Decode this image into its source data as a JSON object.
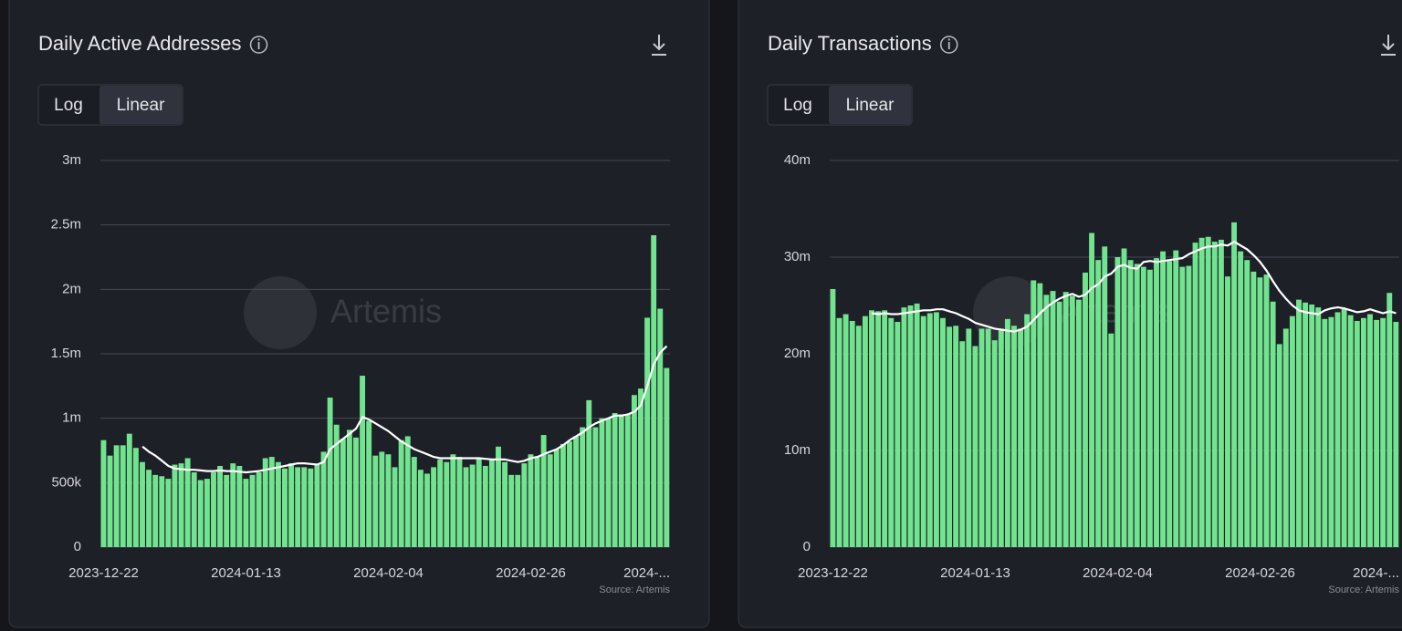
{
  "chart_data": [
    {
      "type": "bar",
      "title": "Daily Active Addresses",
      "scale_buttons": [
        "Log",
        "Linear"
      ],
      "log_scale": false,
      "watermark": "Artemis",
      "source": "Source: Artemis",
      "grid": true,
      "categories": [
        "2023-12-22",
        null,
        null,
        null,
        null,
        null,
        null,
        null,
        null,
        null,
        null,
        null,
        null,
        null,
        null,
        null,
        null,
        null,
        null,
        null,
        null,
        null,
        "2024-01-13",
        null,
        null,
        null,
        null,
        null,
        null,
        null,
        null,
        null,
        null,
        null,
        null,
        null,
        null,
        null,
        null,
        null,
        null,
        null,
        null,
        null,
        "2024-02-04",
        null,
        null,
        null,
        null,
        null,
        null,
        null,
        null,
        null,
        null,
        null,
        null,
        null,
        null,
        null,
        null,
        null,
        null,
        null,
        null,
        null,
        "2024-02-26",
        null,
        null,
        null,
        null,
        null,
        null,
        null,
        null,
        null,
        null,
        null,
        null,
        null,
        null,
        null,
        null,
        null,
        null,
        null,
        null,
        "2024-..."
      ],
      "ylim": [
        0,
        3000000
      ],
      "yticks": [
        0,
        {
          "value": 500000,
          "label": "500k"
        },
        {
          "value": 1000000,
          "label": "1m"
        },
        {
          "value": 1500000,
          "label": "1.5m"
        },
        {
          "value": 2000000,
          "label": "2m"
        },
        {
          "value": 2500000,
          "label": "2.5m"
        },
        {
          "value": 3000000,
          "label": "3m"
        }
      ],
      "series": [
        {
          "type": "bar",
          "color": "#72e38e",
          "values": [
            830000,
            710000,
            790000,
            790000,
            880000,
            770000,
            660000,
            600000,
            560000,
            550000,
            530000,
            640000,
            650000,
            690000,
            580000,
            520000,
            530000,
            580000,
            630000,
            560000,
            650000,
            630000,
            530000,
            560000,
            580000,
            690000,
            700000,
            660000,
            610000,
            650000,
            620000,
            620000,
            610000,
            640000,
            740000,
            1160000,
            950000,
            840000,
            910000,
            850000,
            1330000,
            980000,
            710000,
            740000,
            720000,
            620000,
            830000,
            860000,
            700000,
            600000,
            570000,
            620000,
            680000,
            660000,
            720000,
            700000,
            620000,
            640000,
            690000,
            630000,
            680000,
            780000,
            660000,
            560000,
            560000,
            650000,
            720000,
            700000,
            870000,
            720000,
            760000,
            800000,
            820000,
            860000,
            930000,
            1140000,
            930000,
            1000000,
            1000000,
            1040000,
            1030000,
            1030000,
            1180000,
            1230000,
            1780000,
            2420000,
            1850000,
            1390000
          ]
        },
        {
          "type": "line",
          "color": "#ffffff",
          "values": [
            null,
            null,
            null,
            null,
            null,
            null,
            780000,
            740000,
            710000,
            670000,
            630000,
            610000,
            605000,
            600000,
            600000,
            595000,
            590000,
            590000,
            595000,
            590000,
            590000,
            585000,
            580000,
            585000,
            590000,
            600000,
            610000,
            620000,
            630000,
            640000,
            650000,
            650000,
            645000,
            640000,
            660000,
            760000,
            800000,
            840000,
            880000,
            920000,
            1010000,
            990000,
            960000,
            930000,
            900000,
            860000,
            820000,
            790000,
            760000,
            740000,
            720000,
            700000,
            690000,
            690000,
            690000,
            690000,
            690000,
            690000,
            690000,
            685000,
            680000,
            680000,
            680000,
            670000,
            660000,
            670000,
            690000,
            700000,
            720000,
            740000,
            760000,
            790000,
            830000,
            860000,
            890000,
            930000,
            960000,
            980000,
            1000000,
            1020000,
            1020000,
            1030000,
            1050000,
            1100000,
            1250000,
            1420000,
            1510000,
            1560000
          ]
        }
      ]
    },
    {
      "type": "bar",
      "title": "Daily Transactions",
      "scale_buttons": [
        "Log",
        "Linear"
      ],
      "log_scale": false,
      "watermark": "Artemis",
      "source": "Source: Artemis",
      "grid": true,
      "categories": [
        "2023-12-22",
        null,
        null,
        null,
        null,
        null,
        null,
        null,
        null,
        null,
        null,
        null,
        null,
        null,
        null,
        null,
        null,
        null,
        null,
        null,
        null,
        null,
        "2024-01-13",
        null,
        null,
        null,
        null,
        null,
        null,
        null,
        null,
        null,
        null,
        null,
        null,
        null,
        null,
        null,
        null,
        null,
        null,
        null,
        null,
        null,
        "2024-02-04",
        null,
        null,
        null,
        null,
        null,
        null,
        null,
        null,
        null,
        null,
        null,
        null,
        null,
        null,
        null,
        null,
        null,
        null,
        null,
        null,
        null,
        "2024-02-26",
        null,
        null,
        null,
        null,
        null,
        null,
        null,
        null,
        null,
        null,
        null,
        null,
        null,
        null,
        null,
        null,
        null,
        null,
        null,
        null,
        "2024-..."
      ],
      "ylim": [
        0,
        40000000
      ],
      "yticks": [
        0,
        {
          "value": 10000000,
          "label": "10m"
        },
        {
          "value": 20000000,
          "label": "20m"
        },
        {
          "value": 30000000,
          "label": "30m"
        },
        {
          "value": 40000000,
          "label": "40m"
        }
      ],
      "series": [
        {
          "type": "bar",
          "color": "#72e38e",
          "values": [
            26700000,
            23700000,
            24100000,
            23400000,
            22900000,
            23900000,
            24500000,
            24400000,
            24500000,
            23700000,
            23300000,
            24800000,
            25000000,
            25200000,
            23900000,
            24200000,
            24300000,
            23700000,
            22800000,
            22900000,
            21300000,
            22600000,
            20800000,
            22600000,
            22600000,
            21400000,
            22600000,
            23600000,
            22900000,
            22600000,
            24100000,
            27600000,
            27300000,
            26100000,
            26500000,
            25400000,
            26400000,
            26000000,
            25600000,
            28400000,
            32500000,
            29700000,
            31100000,
            22100000,
            30000000,
            30900000,
            29700000,
            29300000,
            29000000,
            28700000,
            29900000,
            30600000,
            29600000,
            30700000,
            29000000,
            29100000,
            31500000,
            32000000,
            32100000,
            31600000,
            31800000,
            28000000,
            33600000,
            30600000,
            29700000,
            28500000,
            27900000,
            28200000,
            25400000,
            21000000,
            22600000,
            23900000,
            25600000,
            25300000,
            25100000,
            24800000,
            23600000,
            23800000,
            24300000,
            24700000,
            24000000,
            23400000,
            23700000,
            24100000,
            23500000,
            23700000,
            26300000,
            23300000
          ]
        },
        {
          "type": "line",
          "color": "#ffffff",
          "values": [
            null,
            null,
            null,
            null,
            null,
            null,
            24200000,
            24100000,
            24200000,
            24100000,
            24100000,
            24200000,
            24300000,
            24400000,
            24500000,
            24500000,
            24600000,
            24600000,
            24400000,
            24200000,
            23900000,
            23600000,
            23200000,
            23000000,
            22800000,
            22600000,
            22500000,
            22400000,
            22300000,
            22500000,
            22800000,
            23500000,
            24200000,
            24800000,
            25300000,
            25700000,
            26000000,
            26200000,
            25900000,
            26100000,
            26800000,
            27200000,
            28000000,
            28300000,
            29000000,
            29200000,
            28900000,
            28800000,
            29500000,
            29600000,
            29500000,
            29600000,
            29700000,
            29800000,
            29900000,
            30300000,
            30600000,
            30900000,
            31100000,
            31100000,
            31300000,
            31200000,
            31600000,
            31200000,
            30800000,
            30200000,
            29500000,
            28600000,
            27500000,
            26500000,
            25700000,
            25000000,
            24500000,
            24300000,
            24200000,
            24100000,
            24500000,
            24700000,
            24800000,
            24700000,
            24500000,
            24300000,
            24400000,
            24600000,
            24400000,
            24200000,
            24400000,
            24200000
          ]
        }
      ]
    }
  ]
}
